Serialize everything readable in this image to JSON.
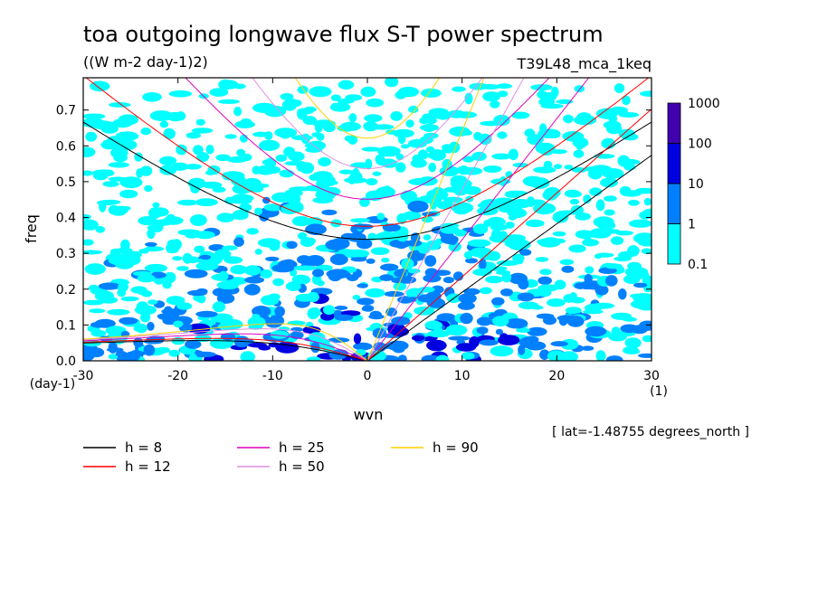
{
  "chart_data": {
    "type": "heatmap",
    "title": "toa outgoing longwave flux S-T power spectrum",
    "subtitle": "((W m-2 day-1)2)",
    "run_label": "T39L48_mca_1keq",
    "xlabel": "wvn",
    "xunit": "(1)",
    "ylabel": "freq",
    "yunit": "(day-1)",
    "xlim": [
      -30,
      30
    ],
    "ylim": [
      0,
      0.79
    ],
    "xticks": [
      "-30",
      "-20",
      "-10",
      "0",
      "10",
      "20",
      "30"
    ],
    "yticks": [
      "0.0",
      "0.1",
      "0.2",
      "0.3",
      "0.4",
      "0.5",
      "0.6",
      "0.7"
    ],
    "info_text": "[ lat=-1.48755 degrees_north ]",
    "colorbar": {
      "levels": [
        "0.1",
        "1",
        "10",
        "100",
        "1000"
      ],
      "colors": [
        "#00ffff",
        "#0080ff",
        "#0000e0",
        "#4000b0"
      ]
    },
    "dispersion_curves": [
      {
        "name": "h =  8",
        "label": "h =  8",
        "h": 8,
        "color": "#000000"
      },
      {
        "name": "h = 12",
        "label": "h = 12",
        "h": 12,
        "color": "#ff0000"
      },
      {
        "name": "h = 25",
        "label": "h = 25",
        "h": 25,
        "color": "#e000c0"
      },
      {
        "name": "h = 50",
        "label": "h = 50",
        "h": 50,
        "color": "#e090e0"
      },
      {
        "name": "h = 90",
        "label": "h = 90",
        "h": 90,
        "color": "#ffd000"
      }
    ],
    "grid": false,
    "legend_position": "bottom"
  }
}
